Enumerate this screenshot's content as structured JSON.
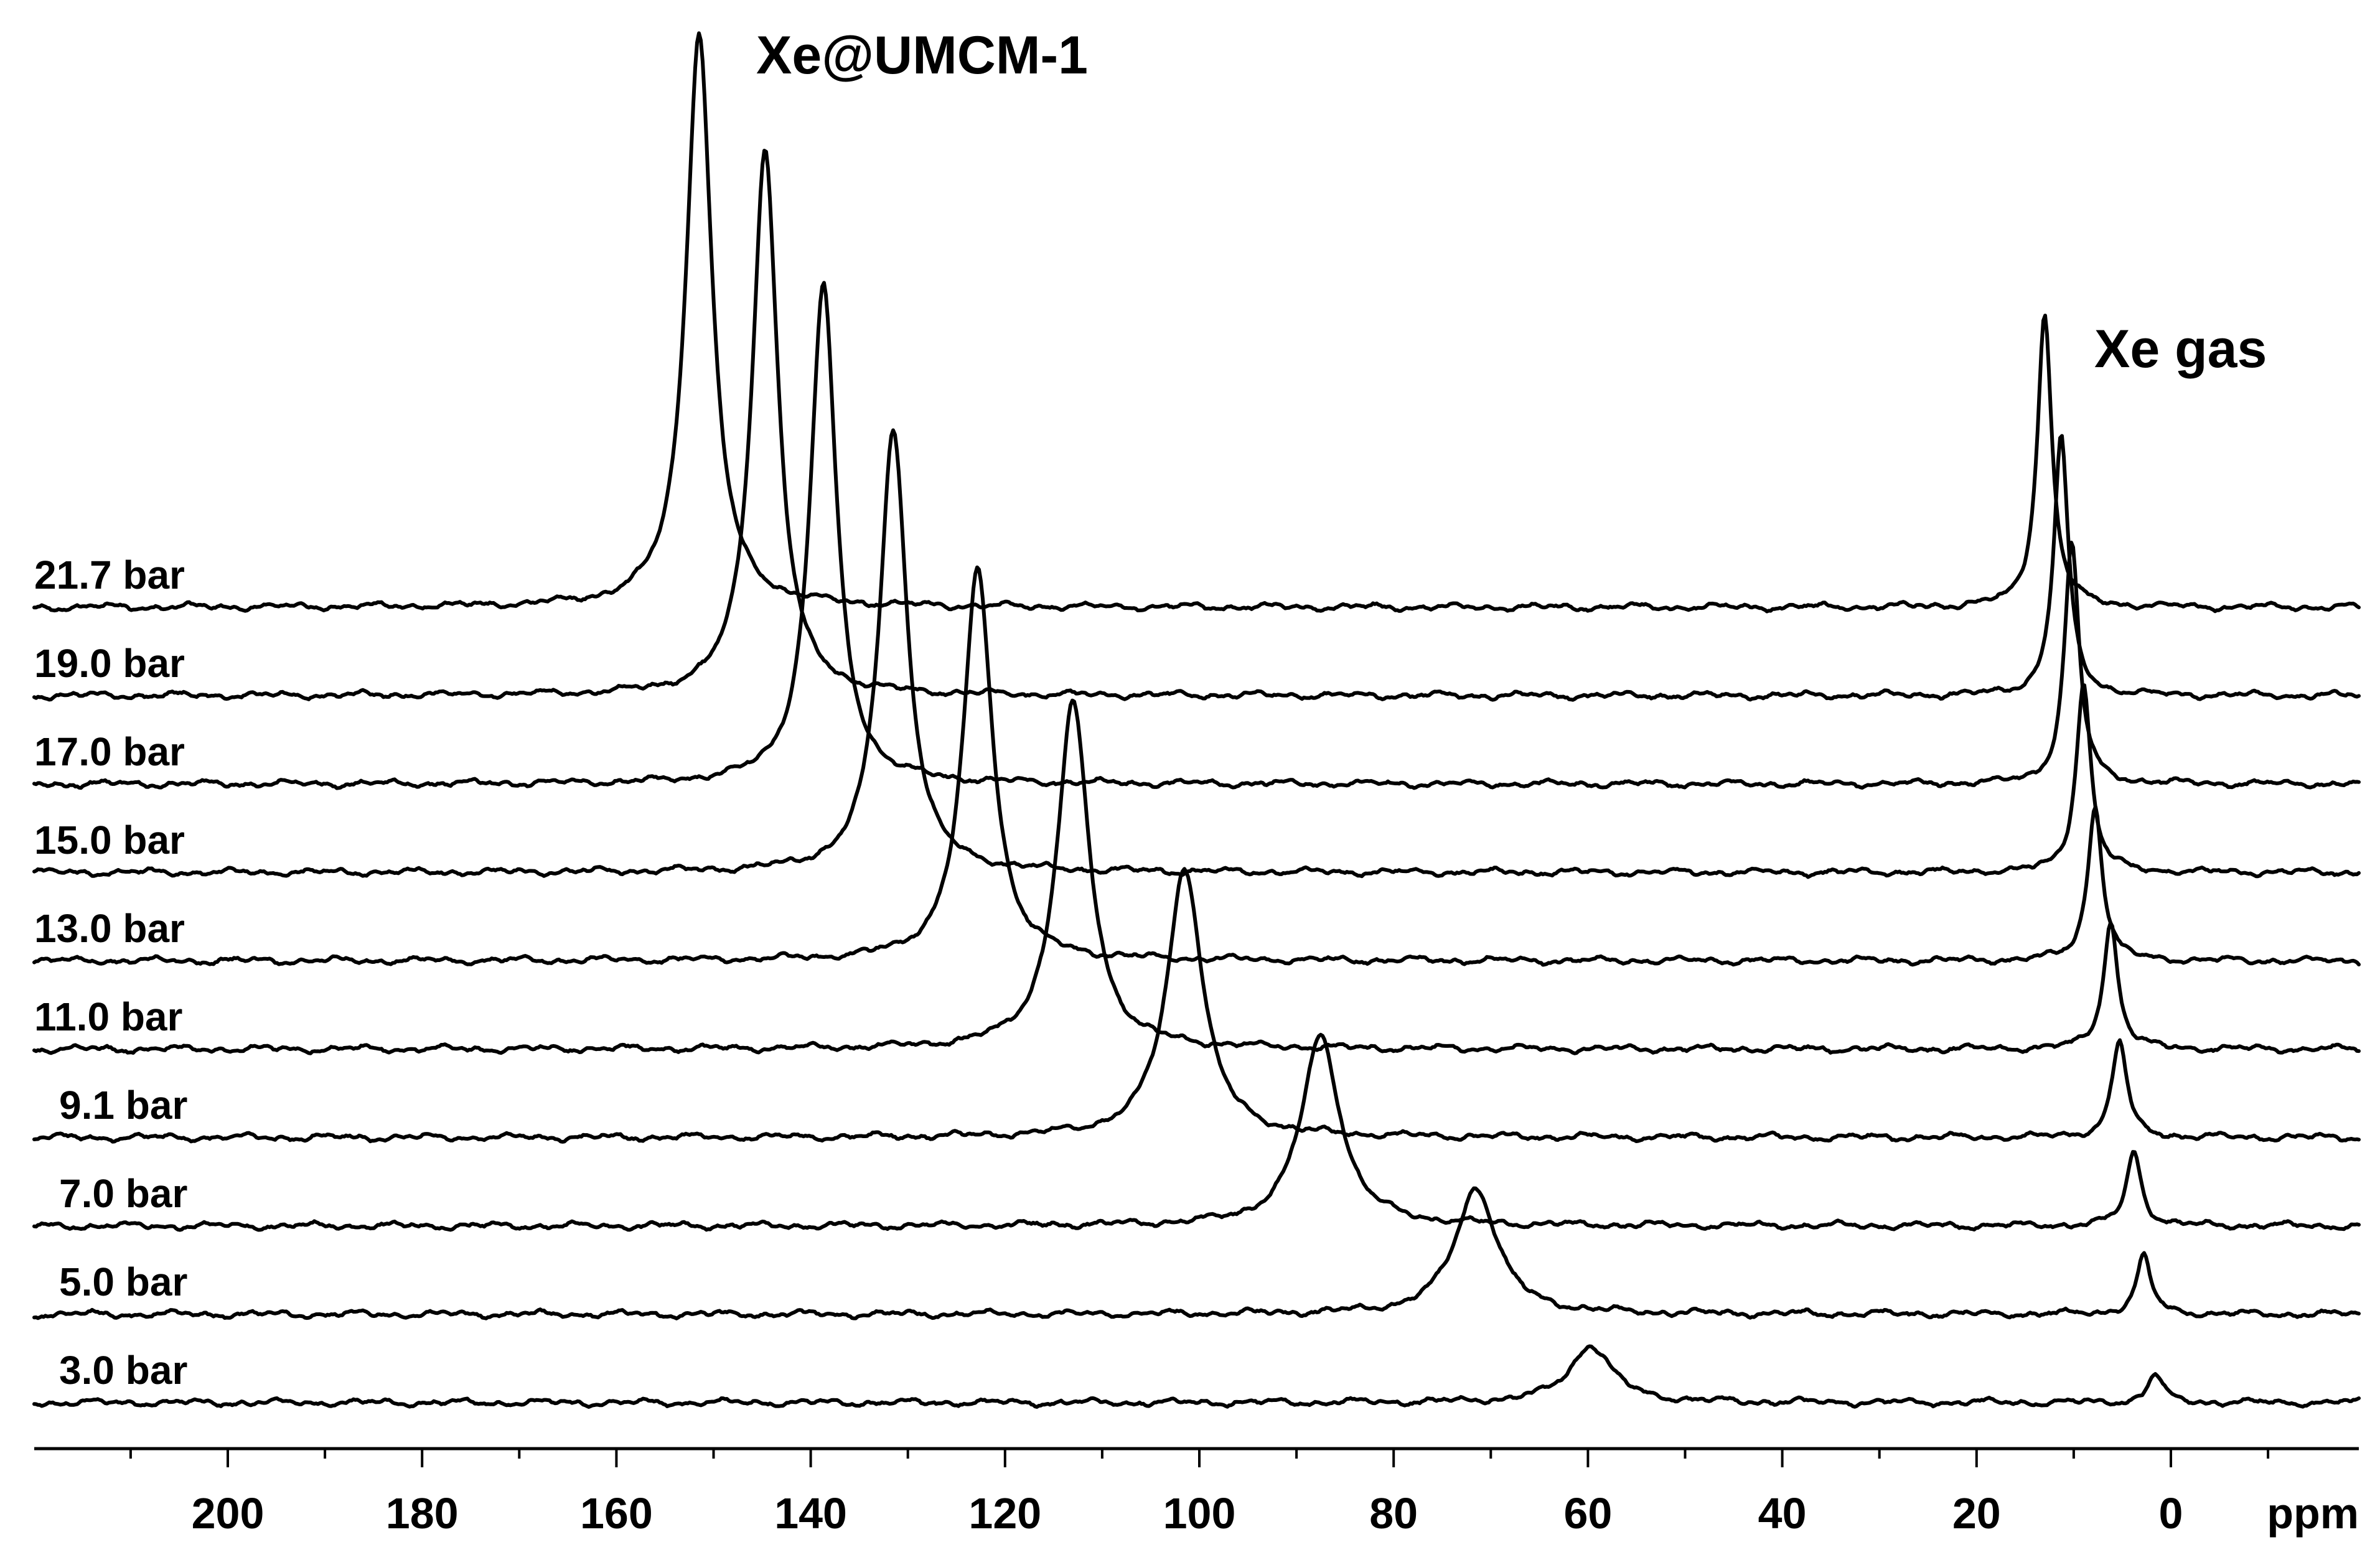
{
  "chart_data": {
    "type": "line",
    "xlabel": "ppm",
    "xlim": [
      220,
      -20
    ],
    "x_reversed": true,
    "grid": false,
    "x_ticks": [
      200,
      180,
      160,
      140,
      120,
      100,
      80,
      60,
      40,
      20,
      0
    ],
    "annotations": [
      "Xe@UMCM-1",
      "Xe gas"
    ],
    "series": [
      {
        "name": "21.7 bar",
        "pressure_bar": 21.7,
        "peaks": [
          {
            "ppm": 151.5,
            "intensity": 1.0,
            "width_ppm": 1.6
          },
          {
            "ppm": 13.0,
            "intensity": 0.51,
            "width_ppm": 0.9
          }
        ]
      },
      {
        "name": "19.0 bar",
        "pressure_bar": 19.0,
        "peaks": [
          {
            "ppm": 144.7,
            "intensity": 0.95,
            "width_ppm": 1.6
          },
          {
            "ppm": 11.3,
            "intensity": 0.45,
            "width_ppm": 0.9
          }
        ]
      },
      {
        "name": "17.0 bar",
        "pressure_bar": 17.0,
        "peaks": [
          {
            "ppm": 138.7,
            "intensity": 0.87,
            "width_ppm": 1.6
          },
          {
            "ppm": 10.2,
            "intensity": 0.42,
            "width_ppm": 0.9
          }
        ]
      },
      {
        "name": "15.0 bar",
        "pressure_bar": 15.0,
        "peaks": [
          {
            "ppm": 131.5,
            "intensity": 0.77,
            "width_ppm": 1.7
          },
          {
            "ppm": 9.0,
            "intensity": 0.33,
            "width_ppm": 0.9
          }
        ]
      },
      {
        "name": "13.0 bar",
        "pressure_bar": 13.0,
        "peaks": [
          {
            "ppm": 122.8,
            "intensity": 0.68,
            "width_ppm": 1.8
          },
          {
            "ppm": 7.8,
            "intensity": 0.27,
            "width_ppm": 0.9
          }
        ]
      },
      {
        "name": "11.0 bar",
        "pressure_bar": 11.0,
        "peaks": [
          {
            "ppm": 113.0,
            "intensity": 0.6,
            "width_ppm": 2.0
          },
          {
            "ppm": 6.2,
            "intensity": 0.22,
            "width_ppm": 0.9
          }
        ]
      },
      {
        "name": "9.1 bar",
        "pressure_bar": 9.1,
        "peaks": [
          {
            "ppm": 101.5,
            "intensity": 0.47,
            "width_ppm": 2.2
          },
          {
            "ppm": 5.3,
            "intensity": 0.17,
            "width_ppm": 0.9
          }
        ]
      },
      {
        "name": "7.0 bar",
        "pressure_bar": 7.0,
        "peaks": [
          {
            "ppm": 87.5,
            "intensity": 0.33,
            "width_ppm": 2.4
          },
          {
            "ppm": 3.8,
            "intensity": 0.13,
            "width_ppm": 0.9
          }
        ]
      },
      {
        "name": "5.0 bar",
        "pressure_bar": 5.0,
        "peaks": [
          {
            "ppm": 71.5,
            "intensity": 0.22,
            "width_ppm": 2.6
          },
          {
            "ppm": 2.8,
            "intensity": 0.1,
            "width_ppm": 0.9
          }
        ]
      },
      {
        "name": "3.0 bar",
        "pressure_bar": 3.0,
        "peaks": [
          {
            "ppm": 59.7,
            "intensity": 0.1,
            "width_ppm": 2.6
          },
          {
            "ppm": 1.6,
            "intensity": 0.05,
            "width_ppm": 0.9
          }
        ]
      }
    ]
  }
}
